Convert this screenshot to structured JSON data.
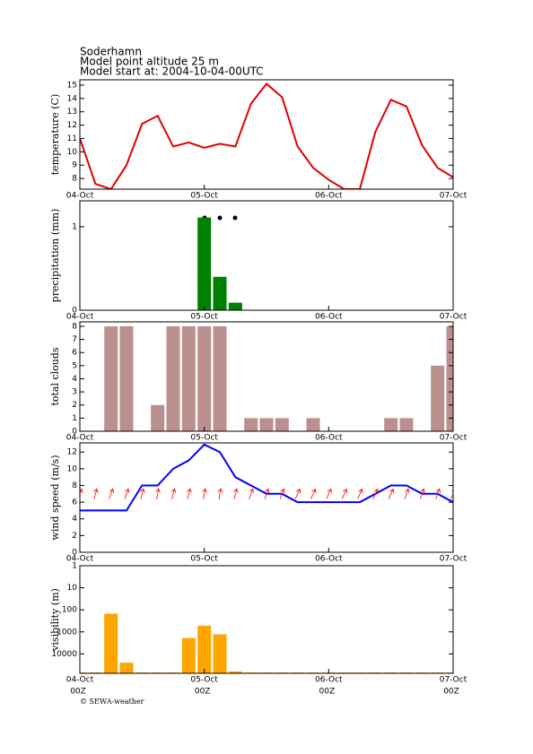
{
  "header": {
    "lines": [
      "Soderhamn",
      "Model point altitude  25 m",
      "Model start at: 2004-10-04-00UTC"
    ]
  },
  "time_axis": {
    "x": [
      0,
      3,
      6,
      9,
      12,
      15,
      18,
      21,
      24,
      27,
      30,
      33,
      36,
      39,
      42,
      45,
      48,
      51,
      54,
      57,
      60,
      63,
      66,
      69,
      72
    ],
    "xlim": [
      0,
      72
    ],
    "xticks": [
      {
        "value": 0,
        "label": "04-Oct"
      },
      {
        "value": 24,
        "label": "05-Oct"
      },
      {
        "value": 48,
        "label": "06-Oct"
      },
      {
        "value": 72,
        "label": "07-Oct"
      }
    ],
    "run_labels": [
      "00Z",
      "00Z",
      "00Z",
      "00Z"
    ]
  },
  "chart_data": [
    {
      "type": "line",
      "ylabel": "temperature (C)",
      "color": "#e00000",
      "values": [
        11,
        7.6,
        7.2,
        9,
        12.1,
        12.7,
        10.4,
        10.7,
        10.3,
        10.6,
        10.4,
        13.6,
        15.1,
        14.1,
        10.4,
        8.8,
        7.9,
        7.2,
        7.2,
        11.5,
        13.9,
        13.4,
        10.5,
        8.8,
        8.1
      ],
      "ylim": [
        7.2,
        15.4
      ],
      "yticks": [
        8,
        9,
        10,
        11,
        12,
        13,
        14,
        15
      ]
    },
    {
      "type": "bar",
      "ylabel": "precipitation (mm)",
      "color": "#008000",
      "values": [
        0,
        0,
        0,
        0,
        0,
        0,
        0,
        0,
        1.11,
        0.4,
        0.09,
        0,
        0,
        0,
        0,
        0,
        0,
        0,
        0,
        0,
        0,
        0,
        0,
        0,
        0
      ],
      "ylim": [
        0,
        1.31
      ],
      "yticks": [
        0,
        1
      ]
    },
    {
      "type": "bar",
      "ylabel": "total clouds",
      "color": "#bc8f8f",
      "values": [
        0,
        0,
        8,
        8,
        0,
        2,
        8,
        8,
        8,
        8,
        0,
        1,
        1,
        1,
        0,
        1,
        0,
        0,
        0,
        0,
        1,
        1,
        0,
        5,
        8
      ],
      "ylim": [
        0,
        8.34
      ],
      "yticks": [
        0,
        1,
        2,
        3,
        4,
        5,
        6,
        7,
        8
      ]
    },
    {
      "type": "line",
      "ylabel": "wind speed (m/s)",
      "color": "#0000ff",
      "values": [
        5,
        5,
        5,
        5,
        8,
        8,
        10,
        11,
        12.9,
        12,
        9,
        8,
        7,
        7,
        6,
        6,
        6,
        6,
        6,
        7,
        8,
        8,
        7,
        7,
        6
      ],
      "ylim": [
        0,
        13.1
      ],
      "yticks": [
        0,
        2,
        4,
        6,
        8,
        10,
        12
      ],
      "arrows": {
        "color": "#ff0000",
        "directions": [
          200,
          195,
          200,
          200,
          195,
          190,
          195,
          195,
          190,
          190,
          195,
          200,
          200,
          200,
          205,
          205,
          205,
          205,
          205,
          205,
          205,
          200,
          200,
          200,
          205
        ]
      }
    },
    {
      "type": "bar",
      "ylabel": "visibility (m)",
      "color": "#ffa500",
      "log_scale": true,
      "y_inverted": true,
      "values": [
        70000,
        70000,
        150,
        25000,
        70000,
        70000,
        70000,
        1900,
        525,
        1300,
        63000,
        70000,
        70000,
        70000,
        70000,
        70000,
        70000,
        70000,
        70000,
        70000,
        70000,
        70000,
        70000,
        70000,
        70000
      ],
      "ylim": [
        1,
        76000
      ],
      "yticks": [
        1,
        10,
        100,
        1000,
        10000
      ]
    }
  ],
  "footer": "© SEWA-weather"
}
